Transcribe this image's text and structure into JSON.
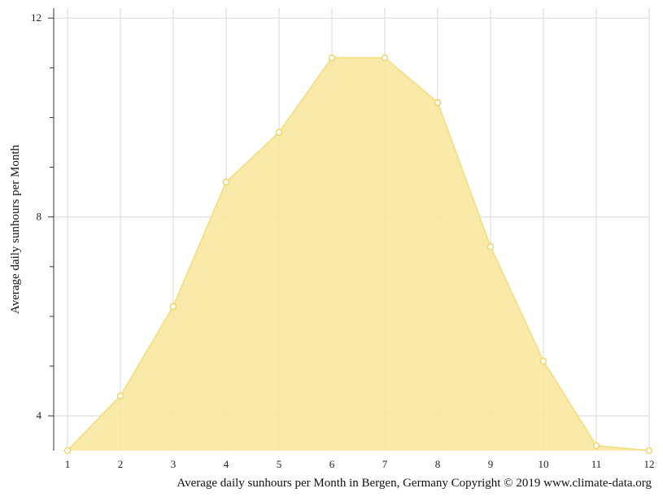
{
  "chart_data": {
    "type": "area",
    "x": [
      1,
      2,
      3,
      4,
      5,
      6,
      7,
      8,
      9,
      10,
      11,
      12
    ],
    "series": [
      {
        "values": [
          3.3,
          4.4,
          6.2,
          8.7,
          9.7,
          11.2,
          11.2,
          10.3,
          7.4,
          5.1,
          3.4,
          3.3
        ]
      }
    ],
    "ylabel": "Average daily sunhours per Month",
    "caption": "Average daily sunhours per Month in Bergen, Germany Copyright © 2019 www.climate-data.org",
    "xlim": [
      1,
      12
    ],
    "ylim": [
      3.3,
      12.2
    ],
    "y_major_ticks": [
      4,
      8,
      12
    ],
    "y_minor_ticks": [
      5,
      6,
      7,
      9,
      10,
      11
    ],
    "x_ticks": [
      "1",
      "2",
      "3",
      "4",
      "5",
      "6",
      "7",
      "8",
      "9",
      "10",
      "11",
      "12"
    ],
    "grid": true,
    "colors": {
      "fill": "#f8e8a0",
      "line": "#f5e08a",
      "marker_stroke": "#f0d56a",
      "grid": "#d8d8d8",
      "axis": "#333333"
    }
  }
}
